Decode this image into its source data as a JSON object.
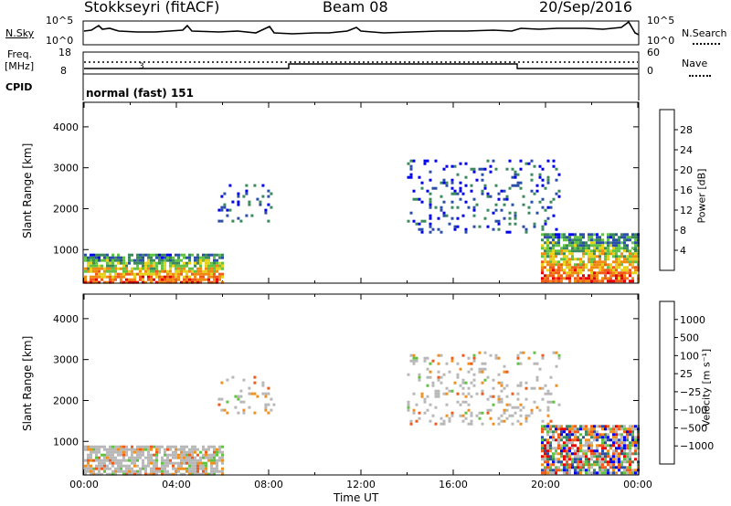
{
  "header": {
    "station": "Stokkseyri (fitACF)",
    "beam": "Beam 08",
    "date": "20/Sep/2016"
  },
  "nsky": {
    "label": "N.Sky",
    "tick_top": "10^5",
    "tick_bottom": "10^0",
    "right_tick_top": "10^5",
    "right_tick_bottom": "10^0",
    "right_label": "N.Search"
  },
  "freq": {
    "label_line1": "Freq.",
    "label_line2": "[MHz]",
    "tick_top": "18",
    "tick_bottom": "8",
    "right_tick_top": "60",
    "right_tick_bottom": "0",
    "right_label": "Nave"
  },
  "cpid": {
    "label": "CPID",
    "value": "normal (fast) 151"
  },
  "colors": {
    "power": [
      "#0000ee",
      "#2b4fa8",
      "#3a8a5c",
      "#62c243",
      "#e6d21a",
      "#f08a10",
      "#f05a1a",
      "#e80000"
    ],
    "velocity": [
      "#e80000",
      "#f05a1a",
      "#f09020",
      "#b8b8b8",
      "#b8b8b8",
      "#62c243",
      "#3a8a5c",
      "#2b4fa8",
      "#0000ee"
    ]
  },
  "chart_data": [
    {
      "type": "heatmap",
      "name": "power",
      "ylabel": "Slant Range [km]",
      "yticks": [
        "1000",
        "2000",
        "3000",
        "4000"
      ],
      "ylim": [
        180,
        4600
      ],
      "xlim": [
        0,
        24
      ],
      "colorbar_label": "Power [dB]",
      "colorbar_ticks": [
        "4",
        "8",
        "12",
        "16",
        "20",
        "24",
        "28"
      ],
      "regions": [
        {
          "t0": 0.0,
          "t1": 6.0,
          "r0": 200,
          "r1": 900,
          "level": "high"
        },
        {
          "t0": 5.8,
          "t1": 8.2,
          "r0": 1700,
          "r1": 2600,
          "level": "low"
        },
        {
          "t0": 14.0,
          "t1": 20.6,
          "r0": 1400,
          "r1": 3200,
          "level": "low"
        },
        {
          "t0": 19.8,
          "t1": 24.0,
          "r0": 200,
          "r1": 1400,
          "level": "high"
        }
      ]
    },
    {
      "type": "heatmap",
      "name": "velocity",
      "ylabel": "Slant Range [km]",
      "yticks": [
        "1000",
        "2000",
        "3000",
        "4000"
      ],
      "ylim": [
        180,
        4600
      ],
      "xlim": [
        0,
        24
      ],
      "xlabel": "Time UT",
      "xticks": [
        "00:00",
        "04:00",
        "08:00",
        "12:00",
        "16:00",
        "20:00",
        "00:00"
      ],
      "colorbar_label": "Velocity [m s⁻¹]",
      "colorbar_ticks": [
        "1000",
        "500",
        "100",
        "25",
        "−25",
        "−100",
        "−500",
        "−1000"
      ],
      "regions": [
        {
          "t0": 0.0,
          "t1": 6.0,
          "r0": 200,
          "r1": 900,
          "level": "near-zero"
        },
        {
          "t0": 5.8,
          "t1": 8.2,
          "r0": 1700,
          "r1": 2600,
          "level": "near-zero"
        },
        {
          "t0": 14.0,
          "t1": 20.6,
          "r0": 1400,
          "r1": 3200,
          "level": "near-zero"
        },
        {
          "t0": 19.8,
          "t1": 24.0,
          "r0": 200,
          "r1": 1400,
          "level": "mixed"
        }
      ]
    }
  ]
}
